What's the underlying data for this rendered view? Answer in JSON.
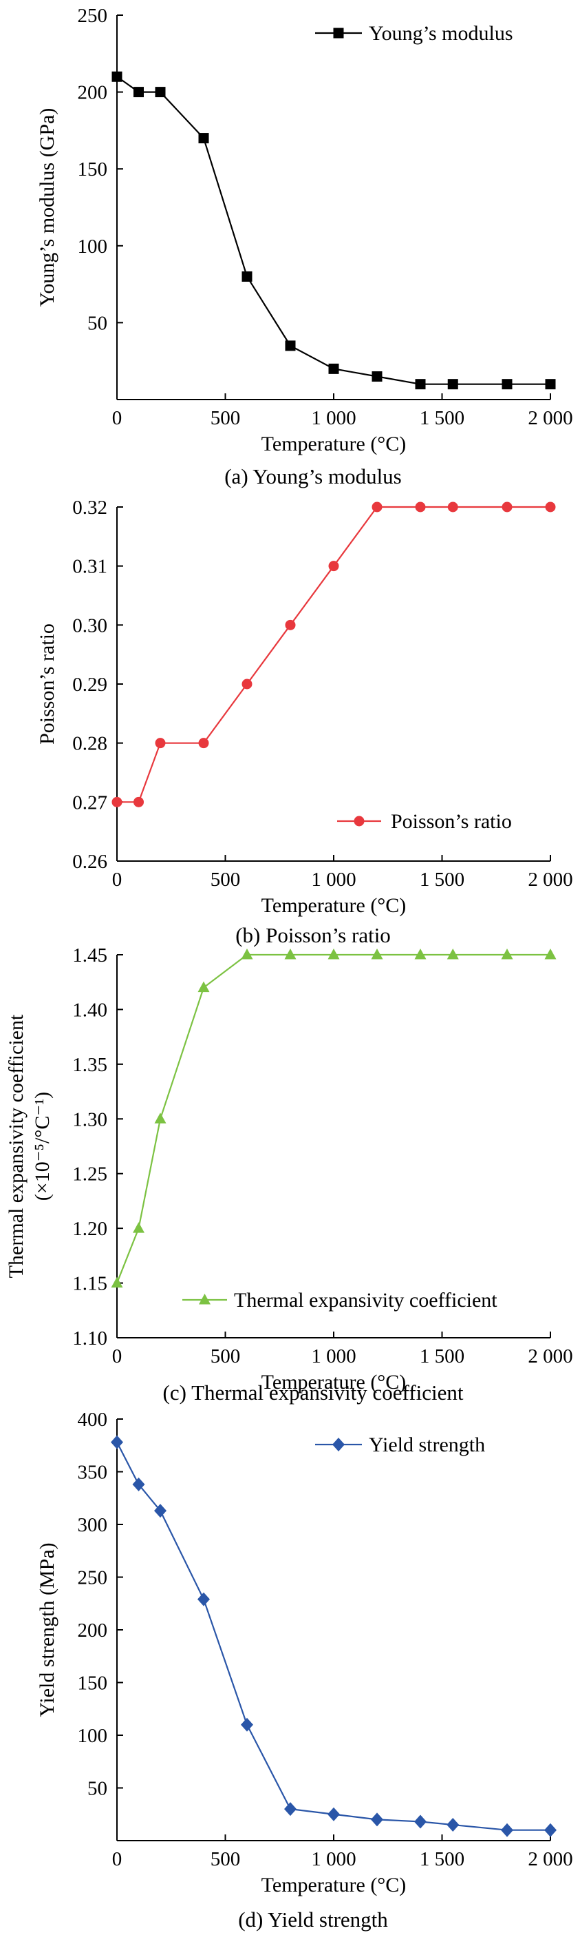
{
  "figure": {
    "chart_data": [
      {
        "type": "line",
        "title": "",
        "caption": "(a) Young’s modulus",
        "xlabel": "Temperature (°C)",
        "ylabel_lines": [
          "Young’s modulus (GPa)"
        ],
        "xlim": [
          0,
          2000
        ],
        "ylim": [
          0,
          250
        ],
        "xticks": [
          0,
          500,
          1000,
          1500,
          2000
        ],
        "xtick_labels": [
          "0",
          "500",
          "1 000",
          "1 500",
          "2 000"
        ],
        "yticks": [
          50,
          100,
          150,
          200,
          250
        ],
        "ytick_labels": [
          "50",
          "100",
          "150",
          "200",
          "250"
        ],
        "legend_position": "top-right",
        "series": [
          {
            "name": "Young’s modulus",
            "color": "#000000",
            "marker": "square",
            "x": [
              0,
              100,
              200,
              400,
              600,
              800,
              1000,
              1200,
              1400,
              1550,
              1800,
              2000
            ],
            "y": [
              210,
              200,
              200,
              170,
              80,
              35,
              20,
              15,
              10,
              10,
              10,
              10
            ]
          }
        ]
      },
      {
        "type": "line",
        "title": "",
        "caption": "(b) Poisson’s ratio",
        "xlabel": "Temperature (°C)",
        "ylabel_lines": [
          "Poisson’s ratio"
        ],
        "xlim": [
          0,
          2000
        ],
        "ylim": [
          0.26,
          0.32
        ],
        "xticks": [
          0,
          500,
          1000,
          1500,
          2000
        ],
        "xtick_labels": [
          "0",
          "500",
          "1 000",
          "1 500",
          "2 000"
        ],
        "yticks": [
          0.26,
          0.27,
          0.28,
          0.29,
          0.3,
          0.31,
          0.32
        ],
        "ytick_labels": [
          "0.26",
          "0.27",
          "0.28",
          "0.29",
          "0.30",
          "0.31",
          "0.32"
        ],
        "legend_position": "bottom-right",
        "series": [
          {
            "name": "Poisson’s ratio",
            "color": "#e8383d",
            "marker": "circle",
            "x": [
              0,
              100,
              200,
              400,
              600,
              800,
              1000,
              1200,
              1400,
              1550,
              1800,
              2000
            ],
            "y": [
              0.27,
              0.27,
              0.28,
              0.28,
              0.29,
              0.3,
              0.31,
              0.32,
              0.32,
              0.32,
              0.32,
              0.32
            ]
          }
        ]
      },
      {
        "type": "line",
        "title": "",
        "caption": "(c) Thermal expansivity coefficient",
        "xlabel": "Temperature (°C)",
        "ylabel_lines": [
          "Thermal expansivity coefficient",
          "(×10⁻⁵/°C⁻¹)"
        ],
        "xlim": [
          0,
          2000
        ],
        "ylim": [
          1.1,
          1.45
        ],
        "xticks": [
          0,
          500,
          1000,
          1500,
          2000
        ],
        "xtick_labels": [
          "0",
          "500",
          "1 000",
          "1 500",
          "2 000"
        ],
        "yticks": [
          1.1,
          1.15,
          1.2,
          1.25,
          1.3,
          1.35,
          1.4,
          1.45
        ],
        "ytick_labels": [
          "1.10",
          "1.15",
          "1.20",
          "1.25",
          "1.30",
          "1.35",
          "1.40",
          "1.45"
        ],
        "legend_position": "bottom-right",
        "series": [
          {
            "name": "Thermal expansivity coefficient",
            "color": "#7cc242",
            "marker": "triangle",
            "x": [
              0,
              100,
              200,
              400,
              600,
              800,
              1000,
              1200,
              1400,
              1550,
              1800,
              2000
            ],
            "y": [
              1.15,
              1.2,
              1.3,
              1.42,
              1.45,
              1.45,
              1.45,
              1.45,
              1.45,
              1.45,
              1.45,
              1.45
            ]
          }
        ]
      },
      {
        "type": "line",
        "title": "",
        "caption": "(d) Yield strength",
        "xlabel": "Temperature (°C)",
        "ylabel_lines": [
          "Yield strength (MPa)"
        ],
        "xlim": [
          0,
          2000
        ],
        "ylim": [
          0,
          400
        ],
        "xticks": [
          0,
          500,
          1000,
          1500,
          2000
        ],
        "xtick_labels": [
          "0",
          "500",
          "1 000",
          "1 500",
          "2 000"
        ],
        "yticks": [
          50,
          100,
          150,
          200,
          250,
          300,
          350,
          400
        ],
        "ytick_labels": [
          "50",
          "100",
          "150",
          "200",
          "250",
          "300",
          "350",
          "400"
        ],
        "legend_position": "top-right",
        "series": [
          {
            "name": "Yield strength",
            "color": "#2a56a8",
            "marker": "diamond",
            "x": [
              0,
              100,
              200,
              400,
              600,
              800,
              1000,
              1200,
              1400,
              1550,
              1800,
              2000
            ],
            "y": [
              378,
              338,
              313,
              229,
              110,
              30,
              25,
              20,
              18,
              15,
              10,
              10
            ]
          }
        ]
      }
    ]
  }
}
